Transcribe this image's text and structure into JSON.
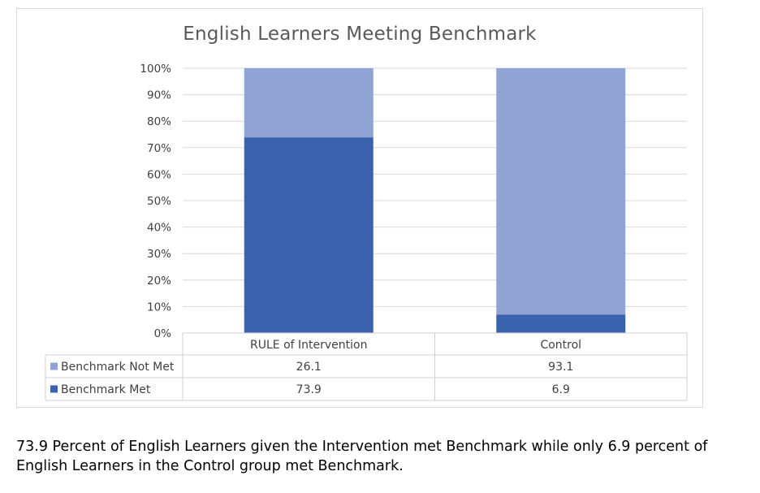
{
  "chart_data": {
    "type": "bar",
    "stacked": true,
    "title": "English Learners Meeting Benchmark",
    "categories": [
      "RULE of Intervention",
      "Control"
    ],
    "series": [
      {
        "name": "Benchmark Met",
        "values": [
          73.9,
          6.9
        ],
        "color": "#3b62ae"
      },
      {
        "name": "Benchmark Not Met",
        "values": [
          26.1,
          93.1
        ],
        "color": "#8fa4d4"
      }
    ],
    "yticks": [
      "0%",
      "10%",
      "20%",
      "30%",
      "40%",
      "50%",
      "60%",
      "70%",
      "80%",
      "90%",
      "100%"
    ],
    "ylim": [
      0,
      100
    ],
    "grid": true,
    "data_table": {
      "rows": [
        {
          "label": "Benchmark Not Met",
          "values": [
            "26.1",
            "93.1"
          ],
          "color": "#8fa4d4"
        },
        {
          "label": "Benchmark Met",
          "values": [
            "73.9",
            "6.9"
          ],
          "color": "#3b62ae"
        }
      ]
    }
  },
  "caption": "73.9 Percent of English Learners given the Intervention met Benchmark while only 6.9 percent of English Learners in the Control group met Benchmark."
}
